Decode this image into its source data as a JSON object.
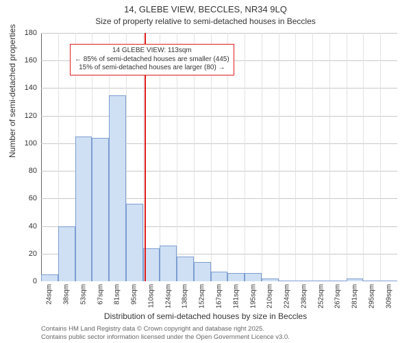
{
  "title_main": "14, GLEBE VIEW, BECCLES, NR34 9LQ",
  "title_sub": "Size of property relative to semi-detached houses in Beccles",
  "y_label": "Number of semi-detached properties",
  "x_label": "Distribution of semi-detached houses by size in Beccles",
  "credits_line1": "Contains HM Land Registry data © Crown copyright and database right 2025.",
  "credits_line2": "Contains public sector information licensed under the Open Government Licence v3.0.",
  "chart": {
    "type": "histogram",
    "ylim": [
      0,
      180
    ],
    "ytick_step": 20,
    "bar_fill": "#cfe0f5",
    "bar_stroke": "#7c9dd0",
    "grid_color_h": "#c8c8c8",
    "grid_color_v": "#e2e2e2",
    "axis_color": "#646464",
    "background_color": "#ffffff",
    "categories": [
      "24sqm",
      "38sqm",
      "53sqm",
      "67sqm",
      "81sqm",
      "95sqm",
      "110sqm",
      "124sqm",
      "138sqm",
      "152sqm",
      "167sqm",
      "181sqm",
      "195sqm",
      "210sqm",
      "224sqm",
      "238sqm",
      "252sqm",
      "267sqm",
      "281sqm",
      "295sqm",
      "309sqm"
    ],
    "values": [
      5,
      40,
      105,
      104,
      135,
      56,
      24,
      26,
      18,
      14,
      7,
      6,
      6,
      2,
      0,
      0,
      0,
      0,
      2,
      0,
      0
    ],
    "reference_line": {
      "value_index": 6,
      "color": "#e11b1b",
      "width": 2
    },
    "annotation": {
      "line1": "14 GLEBE VIEW: 113sqm",
      "line2": "← 85% of semi-detached houses are smaller (445)",
      "line3": "15% of semi-detached houses are larger (80) →",
      "border_color": "#e11b1b",
      "background": "#ffffff"
    },
    "title_fontsize": 13,
    "subtitle_fontsize": 12,
    "axis_label_fontsize": 12,
    "tick_fontsize": 11,
    "xtick_fontsize": 10,
    "annotation_fontsize": 10,
    "credits_fontsize": 9.5
  }
}
